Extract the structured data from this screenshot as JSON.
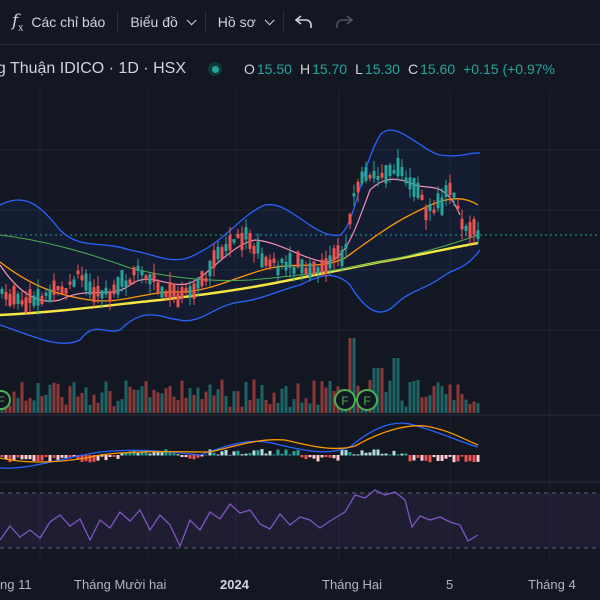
{
  "toolbar": {
    "indicators_label": "Các chỉ báo",
    "charts_label": "Biểu đồ",
    "profile_label": "Hồ sơ",
    "undo_icon": "undo-icon",
    "redo_icon": "redo-icon"
  },
  "legend": {
    "symbol": "ng Thuận IDICO · 1D · HSX",
    "open_label": "O",
    "open": "15.50",
    "high_label": "H",
    "high": "15.70",
    "low_label": "L",
    "low": "15.30",
    "close_label": "C",
    "close": "15.60",
    "change": "+0.15 (+0.97%"
  },
  "colors": {
    "background": "#131722",
    "up": "#26a69a",
    "down": "#ef5350",
    "ma_long": "#f4e542",
    "bands": "#2962ff",
    "rsi": "#7e57c2"
  },
  "events": [
    {
      "label": "F"
    },
    {
      "label": "F"
    },
    {
      "label": "F"
    }
  ],
  "time_axis": {
    "labels": [
      "ng 11",
      "Tháng Mười hai",
      "2024",
      "Tháng Hai",
      "5",
      "Tháng 4"
    ]
  }
}
